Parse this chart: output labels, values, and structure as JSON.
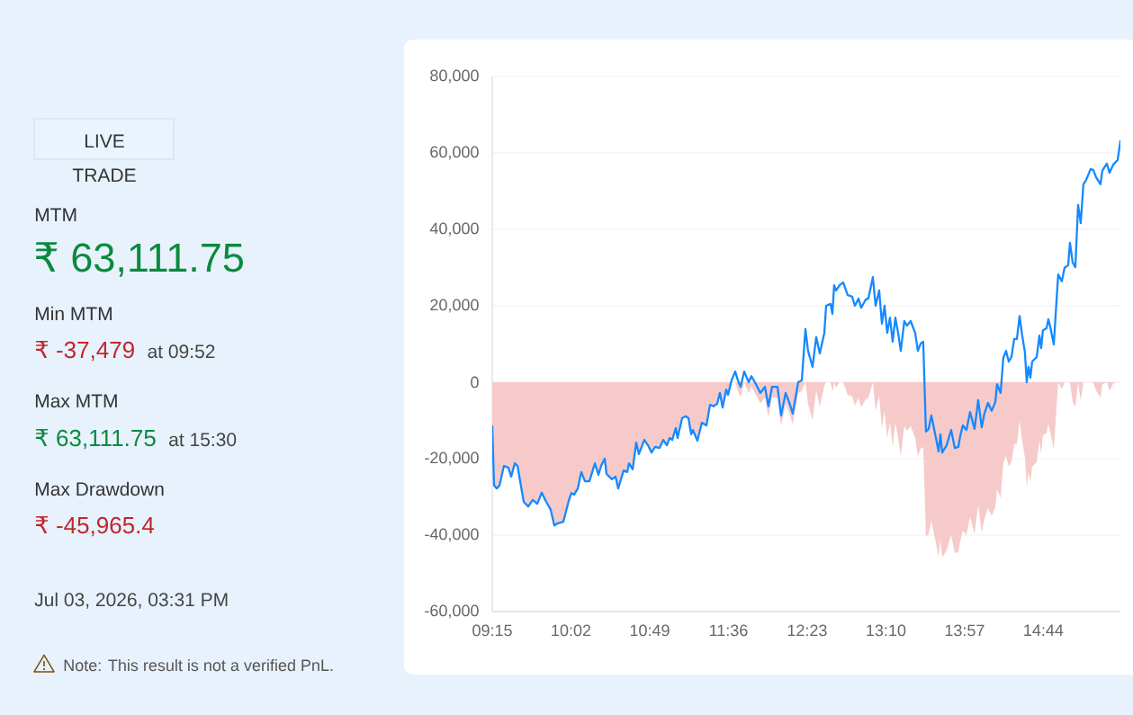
{
  "chart_data": [
    {
      "type": "other",
      "annotations": [
        "LIVE",
        "TRADE",
        "MTM",
        "₹ 63,111.75",
        "Min MTM",
        "₹ -37,479",
        "at 09:52",
        "Max MTM",
        "₹ 63,111.75",
        "at 15:30",
        "Max Drawdown",
        "₹ -45,965.4",
        "Jul 03, 2026, 03:31 PM",
        "Note: This result is not a verified PnL."
      ]
    },
    {
      "type": "line",
      "x": [
        9.25,
        9.268,
        9.295,
        9.322,
        9.366,
        9.411,
        9.438,
        9.474,
        9.501,
        9.563,
        9.608,
        9.653,
        9.698,
        9.742,
        9.787,
        9.832,
        9.867,
        9.904,
        9.957,
        10.011,
        10.038,
        10.065,
        10.101,
        10.136,
        10.172,
        10.217,
        10.271,
        10.306,
        10.333,
        10.369,
        10.387,
        10.441,
        10.477,
        10.503,
        10.557,
        10.593,
        10.611,
        10.647,
        10.682,
        10.709,
        10.763,
        10.799,
        10.835,
        10.87,
        10.915,
        10.951,
        10.987,
        11.014,
        11.041,
        11.076,
        11.094,
        11.139,
        11.175,
        11.202,
        11.229,
        11.247,
        11.291,
        11.336,
        11.381,
        11.417,
        11.452,
        11.488,
        11.515,
        11.542,
        11.578,
        11.596,
        11.631,
        11.667,
        11.694,
        11.721,
        11.757,
        11.802,
        11.828,
        11.873,
        11.918,
        11.963,
        11.998,
        12.034,
        12.088,
        12.124,
        12.169,
        12.204,
        12.24,
        12.294,
        12.33,
        12.366,
        12.392,
        12.437,
        12.473,
        12.509,
        12.554,
        12.572,
        12.616,
        12.634,
        12.652,
        12.67,
        12.706,
        12.742,
        12.786,
        12.831,
        12.858,
        12.894,
        12.921,
        12.965,
        12.992,
        13.037,
        13.064,
        13.1,
        13.127,
        13.153,
        13.18,
        13.207,
        13.234,
        13.261,
        13.288,
        13.315,
        13.35,
        13.377,
        13.413,
        13.458,
        13.485,
        13.512,
        13.538,
        13.565,
        13.592,
        13.619,
        13.646,
        13.691,
        13.709,
        13.727,
        13.771,
        13.816,
        13.852,
        13.888,
        13.906,
        13.932,
        13.968,
        14.004,
        14.049,
        14.085,
        14.12,
        14.147,
        14.183,
        14.219,
        14.255,
        14.273,
        14.308,
        14.335,
        14.362,
        14.389,
        14.416,
        14.443,
        14.47,
        14.497,
        14.523,
        14.55,
        14.568,
        14.586,
        14.604,
        14.622,
        14.667,
        14.694,
        14.711,
        14.729,
        14.765,
        14.783,
        14.801,
        14.837,
        14.881,
        14.917,
        14.944,
        14.98,
        14.998,
        15.025,
        15.052,
        15.079,
        15.105,
        15.132,
        15.159,
        15.204,
        15.231,
        15.258,
        15.302,
        15.32,
        15.365,
        15.392,
        15.428,
        15.472,
        15.5
      ],
      "series": [
        {
          "type": "area",
          "color": "#f7caca",
          "values": [
            -11500,
            -27000,
            -27800,
            -27000,
            -21900,
            -22400,
            -24700,
            -21200,
            -21900,
            -31300,
            -32500,
            -30800,
            -31800,
            -28900,
            -31300,
            -33400,
            -37479,
            -36900,
            -36500,
            -31000,
            -29000,
            -29400,
            -27800,
            -23500,
            -25900,
            -25900,
            -21200,
            -24200,
            -21900,
            -20000,
            -24000,
            -25400,
            -24700,
            -27800,
            -23100,
            -23500,
            -21200,
            -22800,
            -15800,
            -18800,
            -15100,
            -16500,
            -18400,
            -16900,
            -17200,
            -15100,
            -16500,
            -14600,
            -15100,
            -12000,
            -14600,
            -9400,
            -8900,
            -9400,
            -13600,
            -12500,
            -15300,
            -10600,
            -11300,
            -5900,
            -6300,
            -5600,
            -2800,
            -6600,
            -1900,
            -3300,
            0,
            0,
            -2300,
            -4000,
            0,
            -2800,
            -1200,
            -3300,
            -5600,
            -4000,
            -9100,
            -4000,
            -4000,
            -11500,
            -5600,
            -8000,
            -11000,
            -2800,
            -2300,
            0,
            -5700,
            -9900,
            -2100,
            -6400,
            -1000,
            0,
            0,
            -2600,
            0,
            -1400,
            0,
            0,
            -3300,
            -3700,
            -6100,
            -4200,
            -6600,
            -4500,
            -4200,
            0,
            -7500,
            -3500,
            -12200,
            -7500,
            -14600,
            -10600,
            -16900,
            -10600,
            -14600,
            -19300,
            -11500,
            -12700,
            -11500,
            -14600,
            -19300,
            -17400,
            -16900,
            -40400,
            -39700,
            -36200,
            -39700,
            -45600,
            -41100,
            -45900,
            -44000,
            -40000,
            -44700,
            -44400,
            -41600,
            -38800,
            -40000,
            -35300,
            -39700,
            -32200,
            -39300,
            -35700,
            -32900,
            -35000,
            -32700,
            -28000,
            -30300,
            -21100,
            -19300,
            -22100,
            -20900,
            -16200,
            -16200,
            -10200,
            -15300,
            -19700,
            -27500,
            -23500,
            -26300,
            -22100,
            -20900,
            -15300,
            -18600,
            -13900,
            -13400,
            -11000,
            -12900,
            -17600,
            0,
            -1800,
            0,
            0,
            0,
            -5200,
            -6400,
            0,
            -4800,
            0,
            0,
            0,
            -300,
            -2200,
            -4000,
            -500,
            0,
            -2400,
            -300,
            0,
            0
          ]
        },
        {
          "type": "line",
          "color": "#1589ff",
          "values": [
            -11500,
            -27000,
            -27800,
            -27000,
            -21900,
            -22400,
            -24700,
            -21200,
            -21900,
            -31300,
            -32500,
            -30800,
            -31800,
            -28900,
            -31300,
            -33400,
            -37479,
            -36900,
            -36500,
            -31000,
            -29000,
            -29400,
            -27800,
            -23500,
            -25900,
            -25900,
            -21200,
            -24200,
            -21900,
            -20000,
            -24000,
            -25400,
            -24700,
            -27800,
            -23100,
            -23500,
            -21200,
            -22800,
            -15800,
            -18800,
            -15100,
            -16500,
            -18400,
            -16900,
            -17200,
            -15100,
            -16500,
            -14600,
            -15100,
            -12000,
            -14600,
            -9400,
            -8900,
            -9400,
            -13600,
            -12500,
            -15300,
            -10600,
            -11300,
            -5900,
            -6300,
            -5600,
            -2800,
            -6600,
            -1900,
            -3300,
            500,
            2800,
            500,
            -1200,
            2800,
            0,
            1600,
            -500,
            -2800,
            -1200,
            -6300,
            -1200,
            -1200,
            -8700,
            -2800,
            -5200,
            -8200,
            0,
            500,
            13900,
            8200,
            4000,
            11800,
            7500,
            12900,
            20000,
            20500,
            17900,
            25400,
            24000,
            25400,
            26100,
            22800,
            22400,
            20000,
            21900,
            19500,
            21600,
            21900,
            27500,
            20000,
            24000,
            15300,
            20000,
            12900,
            16900,
            10600,
            16900,
            12900,
            8200,
            16000,
            14800,
            16000,
            12900,
            8200,
            10100,
            10600,
            -12900,
            -12200,
            -8700,
            -12200,
            -18100,
            -13600,
            -18400,
            -16500,
            -12500,
            -17200,
            -16900,
            -14100,
            -11300,
            -12500,
            -7800,
            -12200,
            -4700,
            -11800,
            -8200,
            -5400,
            -7500,
            -5200,
            -500,
            -2800,
            6400,
            8200,
            5400,
            6600,
            11300,
            11300,
            17300,
            12200,
            7800,
            0,
            4000,
            1200,
            5400,
            6600,
            12200,
            8900,
            13600,
            14100,
            16500,
            14600,
            9900,
            28200,
            26400,
            29900,
            30600,
            36500,
            31300,
            30100,
            46400,
            41600,
            51800,
            52900,
            55800,
            55500,
            53600,
            51800,
            55300,
            57200,
            54800,
            56900,
            58100,
            63111.75
          ]
        }
      ],
      "xlim": [
        9.25,
        15.5
      ],
      "ylim": [
        -60000,
        80000
      ],
      "xticks": [
        {
          "value": 9.25,
          "label": "09:15"
        },
        {
          "value": 10.0333,
          "label": "10:02"
        },
        {
          "value": 10.8167,
          "label": "10:49"
        },
        {
          "value": 11.6,
          "label": "11:36"
        },
        {
          "value": 12.3833,
          "label": "12:23"
        },
        {
          "value": 13.1667,
          "label": "13:10"
        },
        {
          "value": 13.95,
          "label": "13:57"
        },
        {
          "value": 14.7333,
          "label": "14:44"
        }
      ],
      "yticks": [
        {
          "value": -60000,
          "label": "-60,000"
        },
        {
          "value": -40000,
          "label": "-40,000"
        },
        {
          "value": -20000,
          "label": "-20,000"
        },
        0,
        {
          "value": 20000,
          "label": "20,000"
        },
        {
          "value": 40000,
          "label": "40,000"
        },
        {
          "value": 60000,
          "label": "60,000"
        },
        {
          "value": 80000,
          "label": "80,000"
        }
      ],
      "grid": "y"
    }
  ]
}
